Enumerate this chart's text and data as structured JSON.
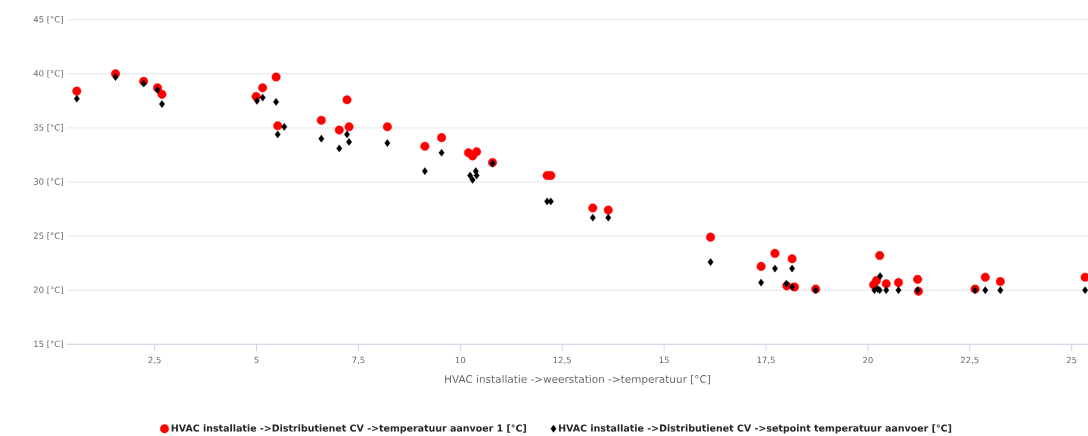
{
  "chart_data": {
    "type": "scatter",
    "xlabel": "HVAC installatie ->weerstation ->temperatuur [°C]",
    "xlim": [
      0.35,
      25.4
    ],
    "xticks": [
      {
        "value": 2.5,
        "label": "2,5"
      },
      5,
      {
        "value": 7.5,
        "label": "7,5"
      },
      10,
      {
        "value": 12.5,
        "label": "12,5"
      },
      15,
      {
        "value": 17.5,
        "label": "17,5"
      },
      20,
      {
        "value": 22.5,
        "label": "22,5"
      },
      25
    ],
    "ylim": [
      15,
      45
    ],
    "yticks": [
      {
        "value": 15,
        "label": "15 [°C]"
      },
      {
        "value": 20,
        "label": "20 [°C]"
      },
      {
        "value": 25,
        "label": "25 [°C]"
      },
      {
        "value": 30,
        "label": "30 [°C]"
      },
      {
        "value": 35,
        "label": "35 [°C]"
      },
      {
        "value": 40,
        "label": "40 [°C]"
      },
      {
        "value": 45,
        "label": "45 [°C]"
      }
    ],
    "grid": "y",
    "legend": "bottom",
    "series": [
      {
        "name": "HVAC installatie ->Distributienet CV ->temperatuur aanvoer 1 [°C]",
        "color": "#ff0000",
        "marker": "circle",
        "x": [
          0.59,
          1.54,
          2.23,
          2.57,
          2.68,
          4.99,
          5.15,
          5.48,
          5.52,
          6.59,
          7.03,
          7.22,
          7.27,
          8.21,
          9.13,
          9.54,
          10.2,
          10.3,
          10.4,
          10.79,
          12.13,
          12.22,
          13.25,
          13.63,
          16.14,
          17.38,
          17.72,
          18.01,
          18.14,
          18.2,
          18.72,
          20.14,
          20.21,
          20.29,
          20.45,
          20.75,
          21.22,
          21.24,
          22.63,
          22.88,
          23.25,
          25.33
        ],
        "values": [
          38.4,
          40.0,
          39.3,
          38.7,
          38.1,
          37.9,
          38.7,
          39.7,
          35.2,
          35.7,
          34.8,
          37.6,
          35.1,
          35.1,
          33.3,
          34.1,
          32.7,
          32.4,
          32.8,
          31.8,
          30.6,
          30.6,
          27.6,
          27.4,
          24.9,
          22.2,
          23.4,
          20.4,
          22.9,
          20.3,
          20.1,
          20.5,
          20.9,
          23.2,
          20.6,
          20.7,
          21.0,
          19.9,
          20.1,
          21.2,
          20.8,
          21.2
        ]
      },
      {
        "name": "HVAC installatie ->Distributienet CV ->setpoint temperatuur aanvoer [°C]",
        "color": "#000000",
        "marker": "diamond",
        "x": [
          0.59,
          1.54,
          2.23,
          2.57,
          2.68,
          5.01,
          5.15,
          5.48,
          5.52,
          5.68,
          6.59,
          7.03,
          7.22,
          7.27,
          8.21,
          9.13,
          9.54,
          10.24,
          10.3,
          10.38,
          10.4,
          10.79,
          12.13,
          12.22,
          13.25,
          13.63,
          16.14,
          17.38,
          17.72,
          18.0,
          18.14,
          18.14,
          18.72,
          20.16,
          20.24,
          20.3,
          20.29,
          20.45,
          20.75,
          21.22,
          22.63,
          22.88,
          23.25,
          25.33
        ],
        "values": [
          37.7,
          39.7,
          39.1,
          38.5,
          37.2,
          37.5,
          37.8,
          37.4,
          34.4,
          35.1,
          34.0,
          33.1,
          34.4,
          33.7,
          33.6,
          31.0,
          32.7,
          30.6,
          30.2,
          31.0,
          30.6,
          31.7,
          28.2,
          28.2,
          26.7,
          26.7,
          22.6,
          20.7,
          22.0,
          20.6,
          20.3,
          22.0,
          20.0,
          20.0,
          20.1,
          21.3,
          20.0,
          20.0,
          20.0,
          20.0,
          20.0,
          20.0,
          20.0,
          20.0
        ]
      }
    ]
  }
}
